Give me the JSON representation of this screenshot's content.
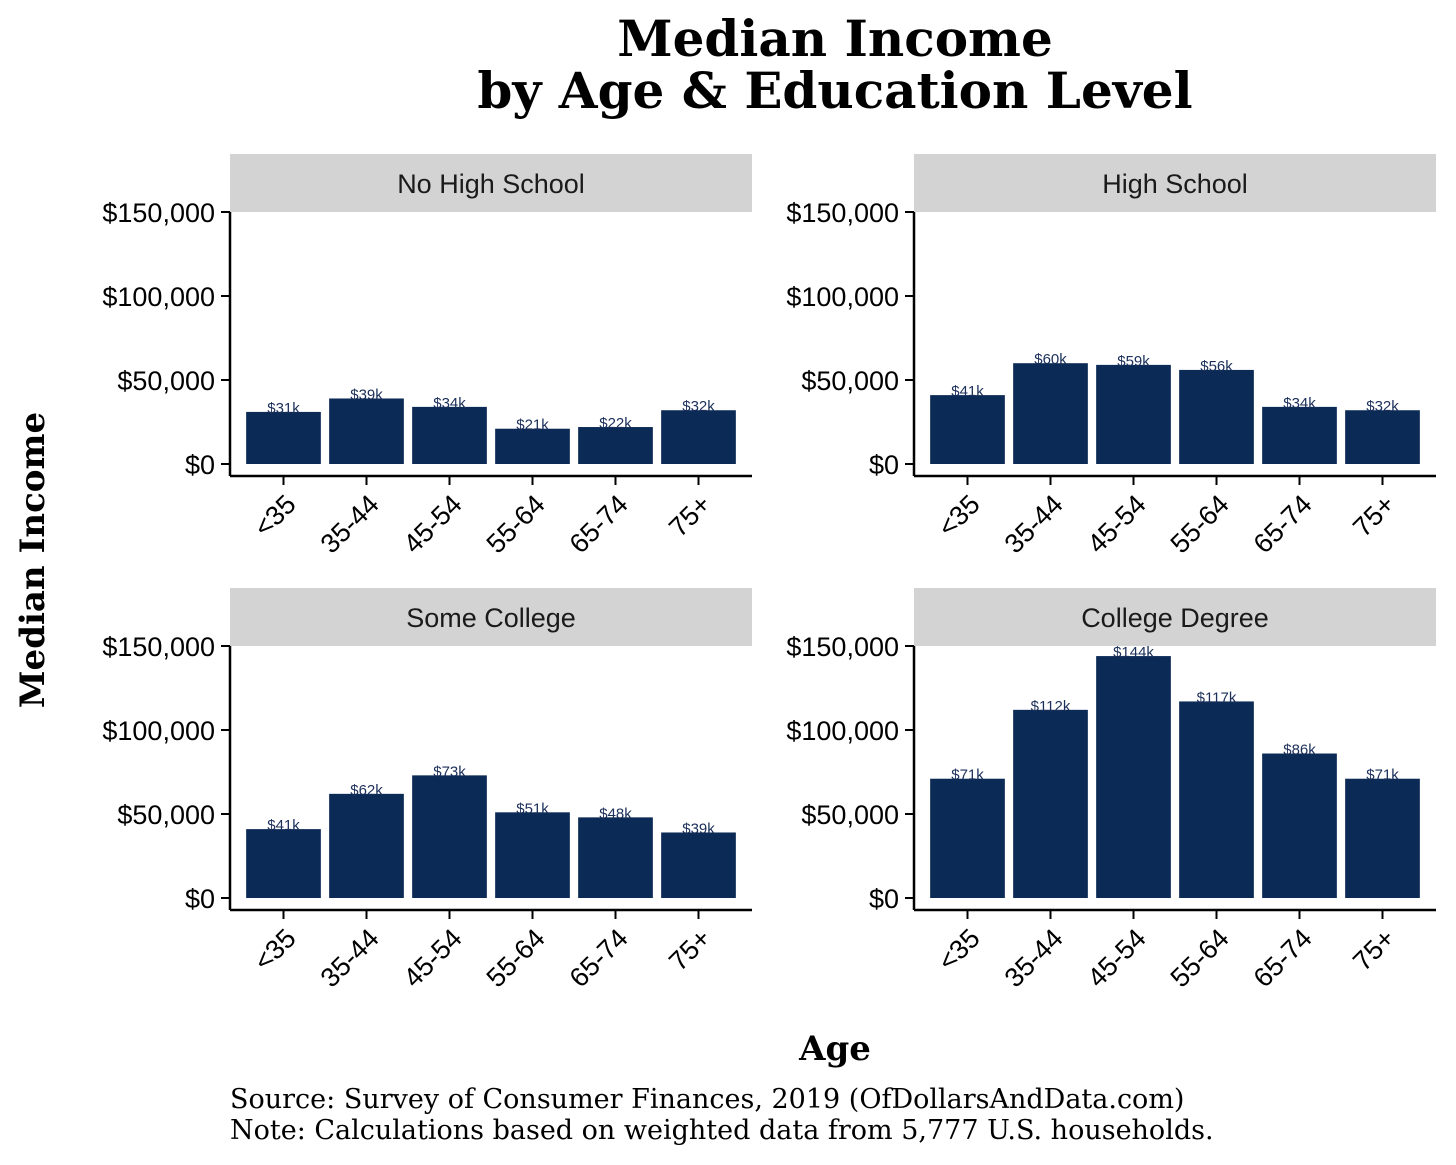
{
  "chart_data": {
    "type": "bar",
    "title": [
      "Median Income",
      "by Age & Education Level"
    ],
    "xlabel": "Age",
    "ylabel": "Median Income",
    "ylim": [
      0,
      150000
    ],
    "yticks": [
      0,
      50000,
      100000,
      150000
    ],
    "ytick_labels": [
      "$0",
      "$50,000",
      "$100,000",
      "$150,000"
    ],
    "categories": [
      "<35",
      "35-44",
      "45-54",
      "55-64",
      "65-74",
      "75+"
    ],
    "grid": false,
    "bar_color": "#0b2a55",
    "strip_color": "#d3d3d3",
    "panels": [
      {
        "name": "No High School",
        "values": [
          31,
          39,
          34,
          21,
          22,
          32
        ],
        "labels": [
          "$31k",
          "$39k",
          "$34k",
          "$21k",
          "$22k",
          "$32k"
        ]
      },
      {
        "name": "High School",
        "values": [
          41,
          60,
          59,
          56,
          34,
          32
        ],
        "labels": [
          "$41k",
          "$60k",
          "$59k",
          "$56k",
          "$34k",
          "$32k"
        ]
      },
      {
        "name": "Some College",
        "values": [
          41,
          62,
          73,
          51,
          48,
          39
        ],
        "labels": [
          "$41k",
          "$62k",
          "$73k",
          "$51k",
          "$48k",
          "$39k"
        ]
      },
      {
        "name": "College Degree",
        "values": [
          71,
          112,
          144,
          117,
          86,
          71
        ],
        "labels": [
          "$71k",
          "$112k",
          "$144k",
          "$117k",
          "$86k",
          "$71k"
        ]
      }
    ],
    "value_unit": "thousands of USD",
    "source": "Source:  Survey of Consumer Finances, 2019 (OfDollarsAndData.com)",
    "note": "Note: Calculations based on weighted data from 5,777 U.S. households."
  }
}
